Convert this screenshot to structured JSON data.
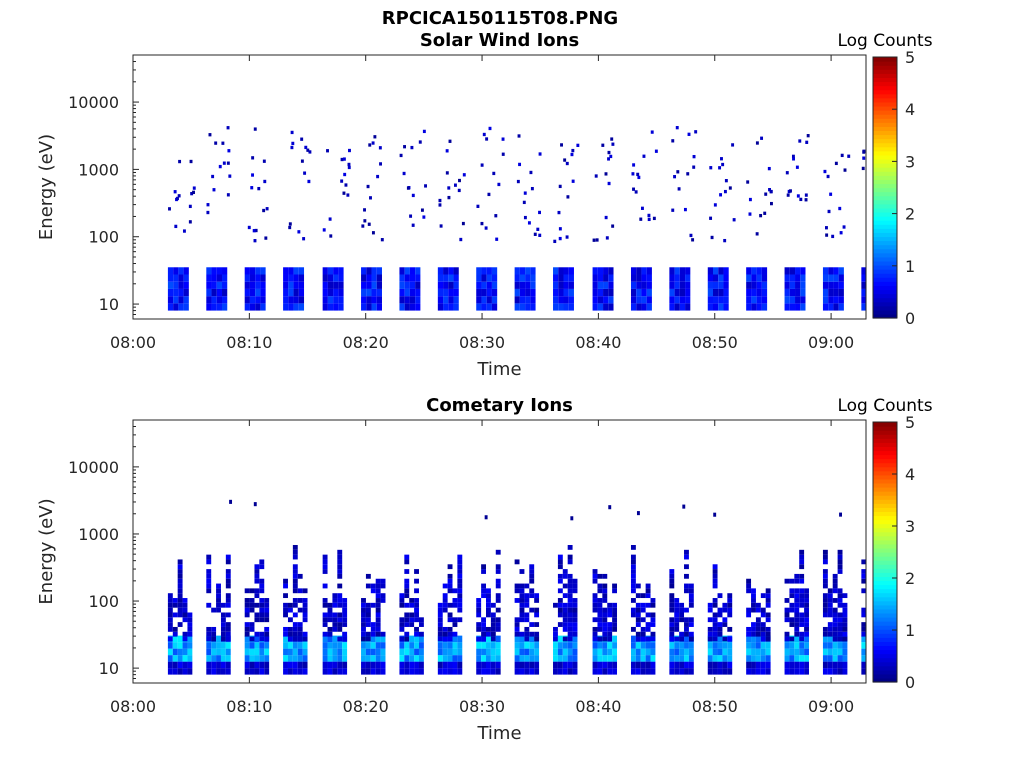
{
  "figure_title": "RPCICA150115T08.PNG",
  "colorbar": {
    "label": "Log Counts",
    "range": [
      0,
      5
    ],
    "ticks": [
      "0",
      "1",
      "2",
      "3",
      "4",
      "5"
    ]
  },
  "chart_data": [
    {
      "type": "heatmap",
      "title": "Solar Wind Ions",
      "xlabel": "Time",
      "ylabel": "Energy (eV)",
      "x_ticks": [
        "08:00",
        "08:10",
        "08:20",
        "08:30",
        "08:40",
        "08:50",
        "09:00"
      ],
      "y_ticks": [
        "10",
        "100",
        "1000",
        "10000"
      ],
      "xlim_minutes_after_0800": [
        0,
        63
      ],
      "ylim_eV": [
        6,
        50000
      ],
      "y_scale": "log",
      "colorbar_label": "Log Counts",
      "colorbar_range": [
        0,
        5
      ],
      "scan_start_minutes": [
        3.0,
        6.3,
        9.6,
        12.9,
        16.3,
        19.6,
        22.9,
        26.2,
        29.5,
        32.8,
        36.1,
        39.5,
        42.8,
        46.1,
        49.4,
        52.7,
        56.0,
        59.3,
        62.6
      ],
      "low_energy_band": {
        "energy_eV": [
          8,
          28
        ],
        "value": [
          0.3,
          1.0
        ]
      },
      "sparse_high_energy": {
        "energy_eV": [
          80,
          4000
        ],
        "value": [
          0.1,
          0.5
        ]
      }
    },
    {
      "type": "heatmap",
      "title": "Cometary Ions",
      "xlabel": "Time",
      "ylabel": "Energy (eV)",
      "x_ticks": [
        "08:00",
        "08:10",
        "08:20",
        "08:30",
        "08:40",
        "08:50",
        "09:00"
      ],
      "y_ticks": [
        "10",
        "100",
        "1000",
        "10000"
      ],
      "xlim_minutes_after_0800": [
        0,
        63
      ],
      "ylim_eV": [
        6,
        50000
      ],
      "y_scale": "log",
      "colorbar_label": "Log Counts",
      "colorbar_range": [
        0,
        5
      ],
      "scan_start_minutes": [
        3.0,
        6.3,
        9.6,
        12.9,
        16.3,
        19.6,
        22.9,
        26.2,
        29.5,
        32.8,
        36.1,
        39.5,
        42.8,
        46.1,
        49.4,
        52.7,
        56.0,
        59.3,
        62.6
      ],
      "peak_band": {
        "energy_eV": [
          12,
          25
        ],
        "value": [
          1.0,
          1.8
        ]
      },
      "mid_band": {
        "energy_eV": [
          25,
          700
        ],
        "value": [
          0.1,
          0.6
        ]
      },
      "sparse_high_energy": {
        "energy_eV": [
          1500,
          3000
        ],
        "value": [
          0.1,
          0.3
        ]
      }
    }
  ]
}
